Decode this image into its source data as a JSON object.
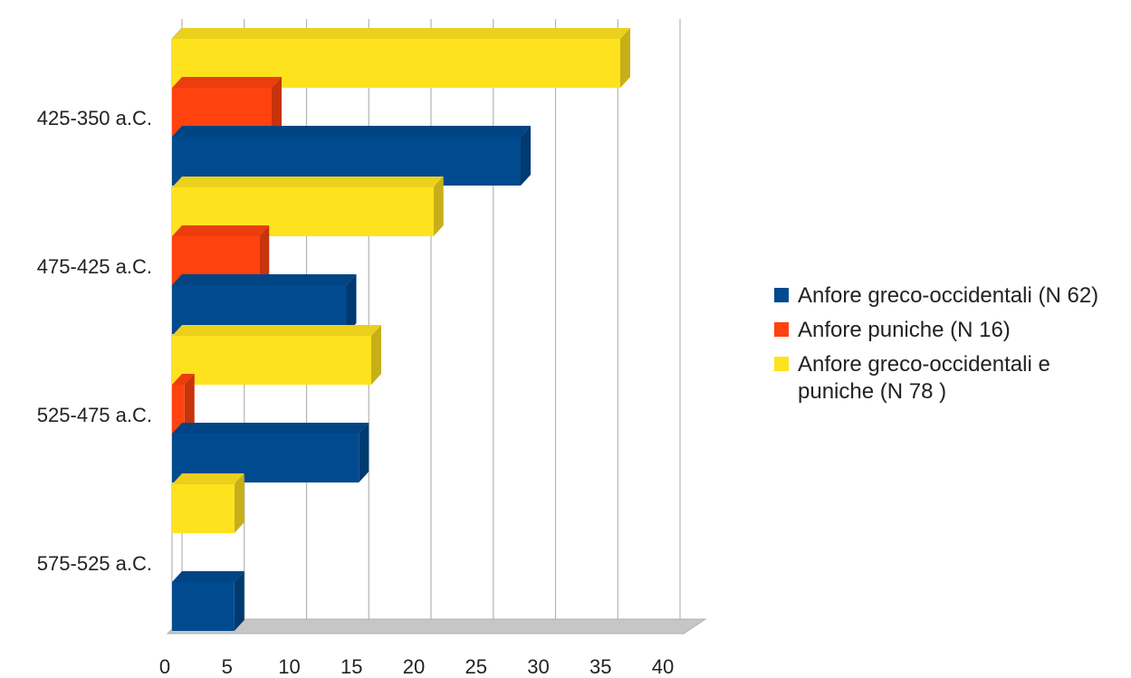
{
  "chart_data": {
    "type": "bar",
    "orientation": "horizontal",
    "categories": [
      "575-525 a.C.",
      "525-475 a.C.",
      "475-425 a.C.",
      "425-350 a.C."
    ],
    "series": [
      {
        "name": "Anfore greco-occidentali (N 62)",
        "values": [
          5,
          15,
          14,
          28
        ],
        "color": "#004a8f"
      },
      {
        "name": "Anfore puniche (N 16)",
        "values": [
          0,
          1,
          7,
          8
        ],
        "color": "#ff420e"
      },
      {
        "name": "Anfore greco-occidentali e puniche (N 78 )",
        "values": [
          5,
          16,
          21,
          36
        ],
        "color": "#ffe21e"
      }
    ],
    "x_ticks": [
      "0",
      "5",
      "10",
      "15",
      "20",
      "25",
      "30",
      "35",
      "40"
    ],
    "xlim": [
      0,
      40
    ],
    "grid": true,
    "style": "3d",
    "legend_position": "right"
  }
}
